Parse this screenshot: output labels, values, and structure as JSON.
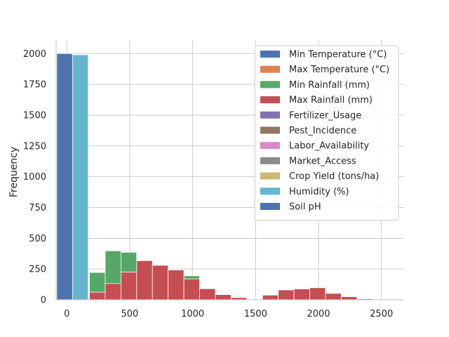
{
  "chart_data": {
    "type": "bar",
    "subtype": "histogram",
    "title": "",
    "xlabel": "",
    "ylabel": "Frequency",
    "xlim": [
      -85,
      2680
    ],
    "ylim": [
      0,
      2110
    ],
    "xticks": [
      0,
      500,
      1000,
      1500,
      2000,
      2500
    ],
    "yticks": [
      0,
      250,
      500,
      750,
      1000,
      1250,
      1500,
      1750,
      2000
    ],
    "grid": true,
    "legend_position": "top-right",
    "bin_width": 125,
    "series": [
      {
        "name": "Min Temperature (°C)",
        "color": "#4c72b0",
        "bins": [
          [
            -80,
            45,
            2000
          ]
        ]
      },
      {
        "name": "Max Temperature (°C)",
        "color": "#dd8452",
        "bins": []
      },
      {
        "name": "Min Rainfall (mm)",
        "color": "#55a868",
        "bins": [
          [
            180,
            305,
            222
          ],
          [
            305,
            430,
            398
          ],
          [
            430,
            555,
            386
          ],
          [
            555,
            680,
            208
          ],
          [
            680,
            805,
            170
          ],
          [
            805,
            930,
            120
          ],
          [
            930,
            1055,
            195
          ],
          [
            1055,
            1180,
            30
          ],
          [
            1180,
            1305,
            10
          ]
        ]
      },
      {
        "name": "Max Rainfall (mm)",
        "color": "#c44e52",
        "bins": [
          [
            180,
            305,
            62
          ],
          [
            305,
            430,
            132
          ],
          [
            430,
            555,
            225
          ],
          [
            555,
            680,
            318
          ],
          [
            680,
            805,
            280
          ],
          [
            805,
            930,
            242
          ],
          [
            930,
            1055,
            170
          ],
          [
            1055,
            1180,
            90
          ],
          [
            1180,
            1305,
            42
          ],
          [
            1305,
            1430,
            18
          ],
          [
            1430,
            1555,
            5
          ],
          [
            1555,
            1680,
            38
          ],
          [
            1680,
            1805,
            80
          ],
          [
            1805,
            1930,
            88
          ],
          [
            1930,
            2055,
            98
          ],
          [
            2055,
            2180,
            52
          ],
          [
            2180,
            2305,
            25
          ],
          [
            2305,
            2430,
            8
          ],
          [
            2430,
            2555,
            5
          ]
        ]
      },
      {
        "name": "Fertilizer_Usage",
        "color": "#8172b3",
        "bins": []
      },
      {
        "name": "Pest_Incidence",
        "color": "#937860",
        "bins": []
      },
      {
        "name": "Labor_Availability",
        "color": "#da8bc3",
        "bins": []
      },
      {
        "name": "Market_Access",
        "color": "#8c8c8c",
        "bins": []
      },
      {
        "name": "Crop Yield (tons/ha)",
        "color": "#ccb974",
        "bins": []
      },
      {
        "name": "Humidity (%)",
        "color": "#64b5cd",
        "bins": [
          [
            45,
            170,
            1990
          ]
        ]
      },
      {
        "name": "Soil pH",
        "color": "#4c72b0",
        "bins": []
      }
    ]
  }
}
